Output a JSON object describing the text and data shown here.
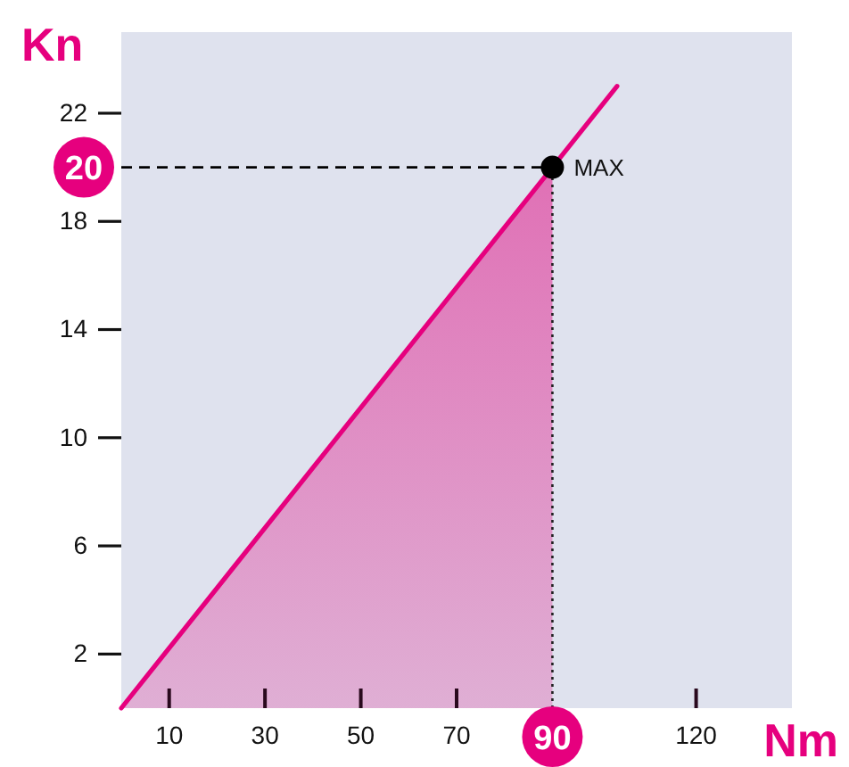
{
  "chart_data": {
    "type": "line",
    "xlabel": "Nm",
    "ylabel": "Kn",
    "xlim": [
      0,
      140
    ],
    "ylim": [
      0,
      25
    ],
    "xticks": [
      10,
      30,
      50,
      70,
      120
    ],
    "yticks": [
      2,
      6,
      10,
      14,
      18,
      22
    ],
    "series": [
      {
        "type": "area",
        "color": "#e070b5",
        "x": [
          0,
          90
        ],
        "values": [
          0,
          20
        ]
      },
      {
        "color": "#e6007e",
        "x": [
          0,
          90,
          103.5
        ],
        "values": [
          0,
          20,
          23
        ]
      },
      {
        "type": "scatter",
        "color": "#000000",
        "marker": "circle",
        "x": [
          90
        ],
        "values": [
          20
        ]
      }
    ],
    "ref_lines": [
      {
        "axis": "y",
        "value": 20,
        "label": "20",
        "line_style": "dashed",
        "color": "#000000"
      },
      {
        "axis": "x",
        "value": 90,
        "label": "90",
        "line_style": "dotted",
        "color": "#222222"
      }
    ],
    "annotations": [
      {
        "text": "MAX",
        "x": 90,
        "y": 20
      }
    ]
  }
}
